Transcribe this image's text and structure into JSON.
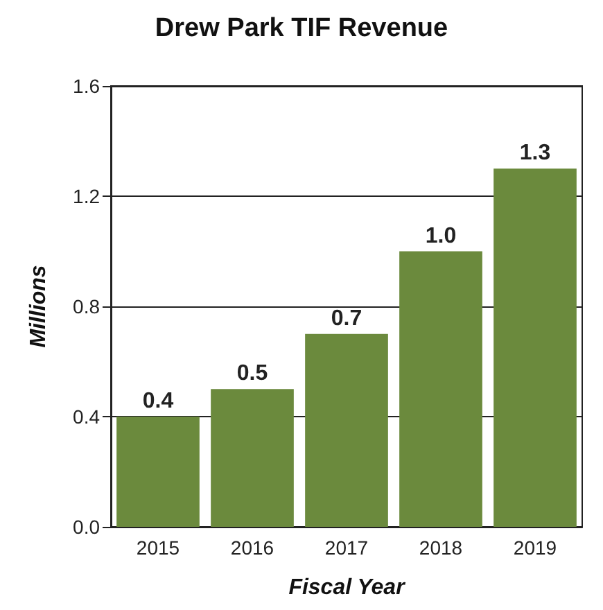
{
  "chart_data": {
    "type": "bar",
    "title": "Drew Park TIF Revenue",
    "xlabel": "Fiscal Year",
    "ylabel": "Millions",
    "categories": [
      "2015",
      "2016",
      "2017",
      "2018",
      "2019"
    ],
    "values": [
      0.4,
      0.5,
      0.7,
      1.0,
      1.3
    ],
    "value_labels": [
      "0.4",
      "0.5",
      "0.7",
      "1.0",
      "1.3"
    ],
    "color": "#6b8a3d",
    "ylim": [
      0,
      1.6
    ],
    "yticks": [
      {
        "value": 0,
        "label": "0.0"
      },
      {
        "value": 0.4,
        "label": "0.4"
      },
      {
        "value": 0.8,
        "label": "0.8"
      },
      {
        "value": 1.2,
        "label": "1.2"
      },
      {
        "value": 1.6,
        "label": "1.6"
      }
    ],
    "grid": "y"
  }
}
